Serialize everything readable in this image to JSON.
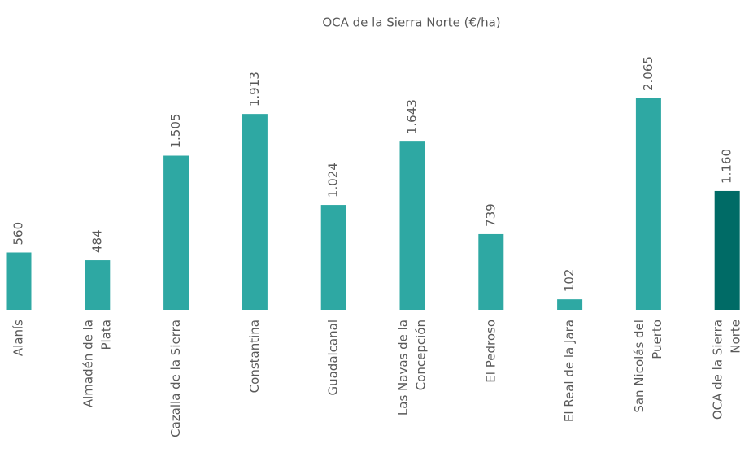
{
  "chart_data": {
    "type": "bar",
    "title": "OCA de la Sierra Norte (€/ha)",
    "categories": [
      [
        "Alanís"
      ],
      [
        "Almadén de la",
        "Plata"
      ],
      [
        "Cazalla de la Sierra"
      ],
      [
        "Constantina"
      ],
      [
        "Guadalcanal"
      ],
      [
        "Las Navas de la",
        "Concepción"
      ],
      [
        "El Pedroso"
      ],
      [
        "El Real de la Jara"
      ],
      [
        "San Nicolás del",
        "Puerto"
      ],
      [
        "OCA de la Sierra",
        "Norte"
      ]
    ],
    "values": [
      560,
      484,
      1505,
      1913,
      1024,
      1643,
      739,
      102,
      2065,
      1160
    ],
    "value_labels": [
      "560",
      "484",
      "1.505",
      "1.913",
      "1.024",
      "1.643",
      "739",
      "102",
      "2.065",
      "1.160"
    ],
    "colors": [
      "#2ea8a3",
      "#2ea8a3",
      "#2ea8a3",
      "#2ea8a3",
      "#2ea8a3",
      "#2ea8a3",
      "#2ea8a3",
      "#2ea8a3",
      "#2ea8a3",
      "#006b66"
    ]
  }
}
